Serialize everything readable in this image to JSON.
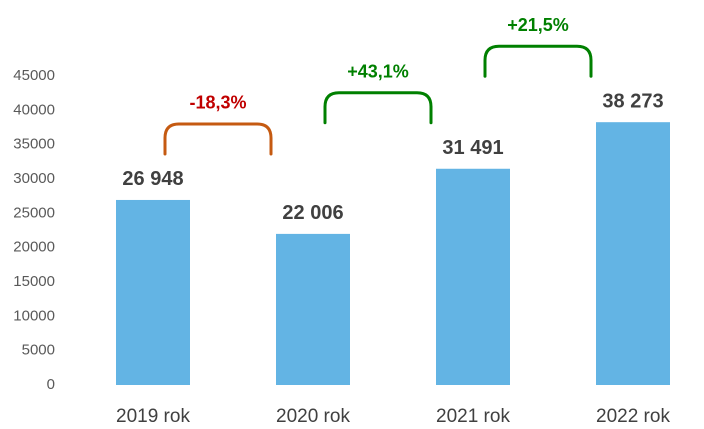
{
  "chart_data": {
    "type": "bar",
    "categories": [
      "2019 rok",
      "2020 rok",
      "2021 rok",
      "2022 rok"
    ],
    "values": [
      26948,
      22006,
      31491,
      38273
    ],
    "value_labels": [
      "26 948",
      "22 006",
      "31 491",
      "38 273"
    ],
    "color": "#63b4e4",
    "ylim": [
      0,
      45000
    ],
    "yticks": [
      0,
      5000,
      10000,
      15000,
      20000,
      25000,
      30000,
      35000,
      40000,
      45000
    ],
    "grid": false,
    "annotations": [
      {
        "text": "-18,3%",
        "color": "#c00000",
        "bracket_color": "#c55a11"
      },
      {
        "text": "+43,1%",
        "color": "#008000",
        "bracket_color": "#008000"
      },
      {
        "text": "+21,5%",
        "color": "#008000",
        "bracket_color": "#008000"
      }
    ]
  }
}
